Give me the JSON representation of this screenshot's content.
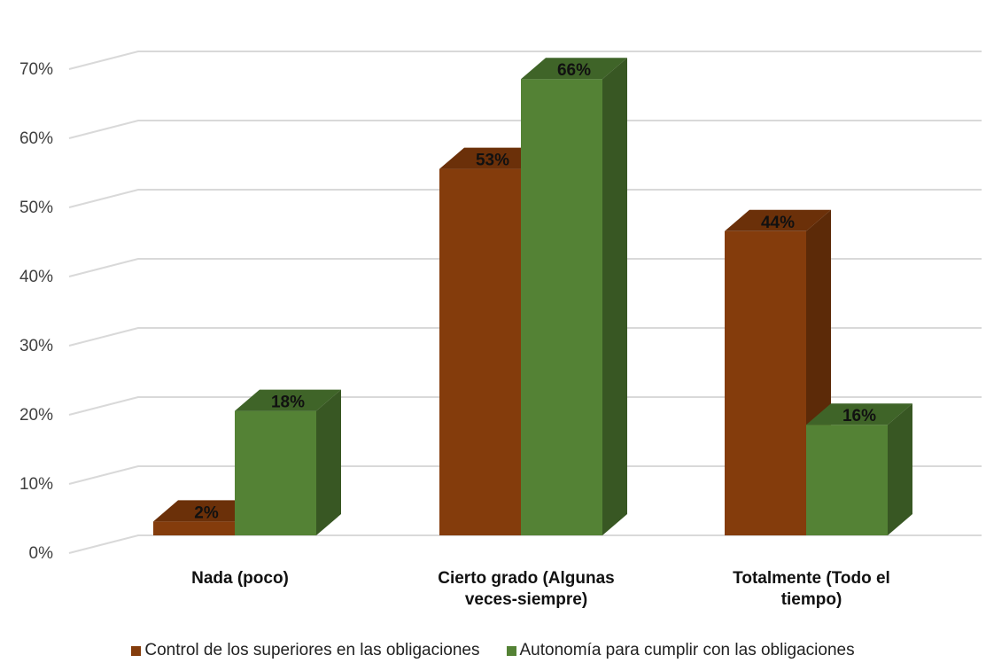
{
  "chart_data": {
    "type": "bar",
    "categories": [
      [
        "Nada (poco)"
      ],
      [
        "Cierto grado (Algunas",
        "veces-siempre)"
      ],
      [
        "Totalmente (Todo el",
        "tiempo)"
      ]
    ],
    "series": [
      {
        "name": "Control de los superiores en las obligaciones",
        "values": [
          2,
          53,
          44
        ],
        "labels": [
          "2%",
          "53%",
          "44%"
        ],
        "color": "#843C0C",
        "side_color": "#5C2A08",
        "top_color": "#6B3009"
      },
      {
        "name": "Autonomía para cumplir con las obligaciones",
        "values": [
          18,
          66,
          16
        ],
        "labels": [
          "18%",
          "66%",
          "16%"
        ],
        "color": "#548235",
        "side_color": "#385723",
        "top_color": "#3F6428"
      }
    ],
    "y_ticks": [
      "0%",
      "10%",
      "20%",
      "30%",
      "40%",
      "50%",
      "60%",
      "70%"
    ],
    "ylim": [
      0,
      75
    ],
    "grid": true,
    "legend_position": "bottom"
  }
}
